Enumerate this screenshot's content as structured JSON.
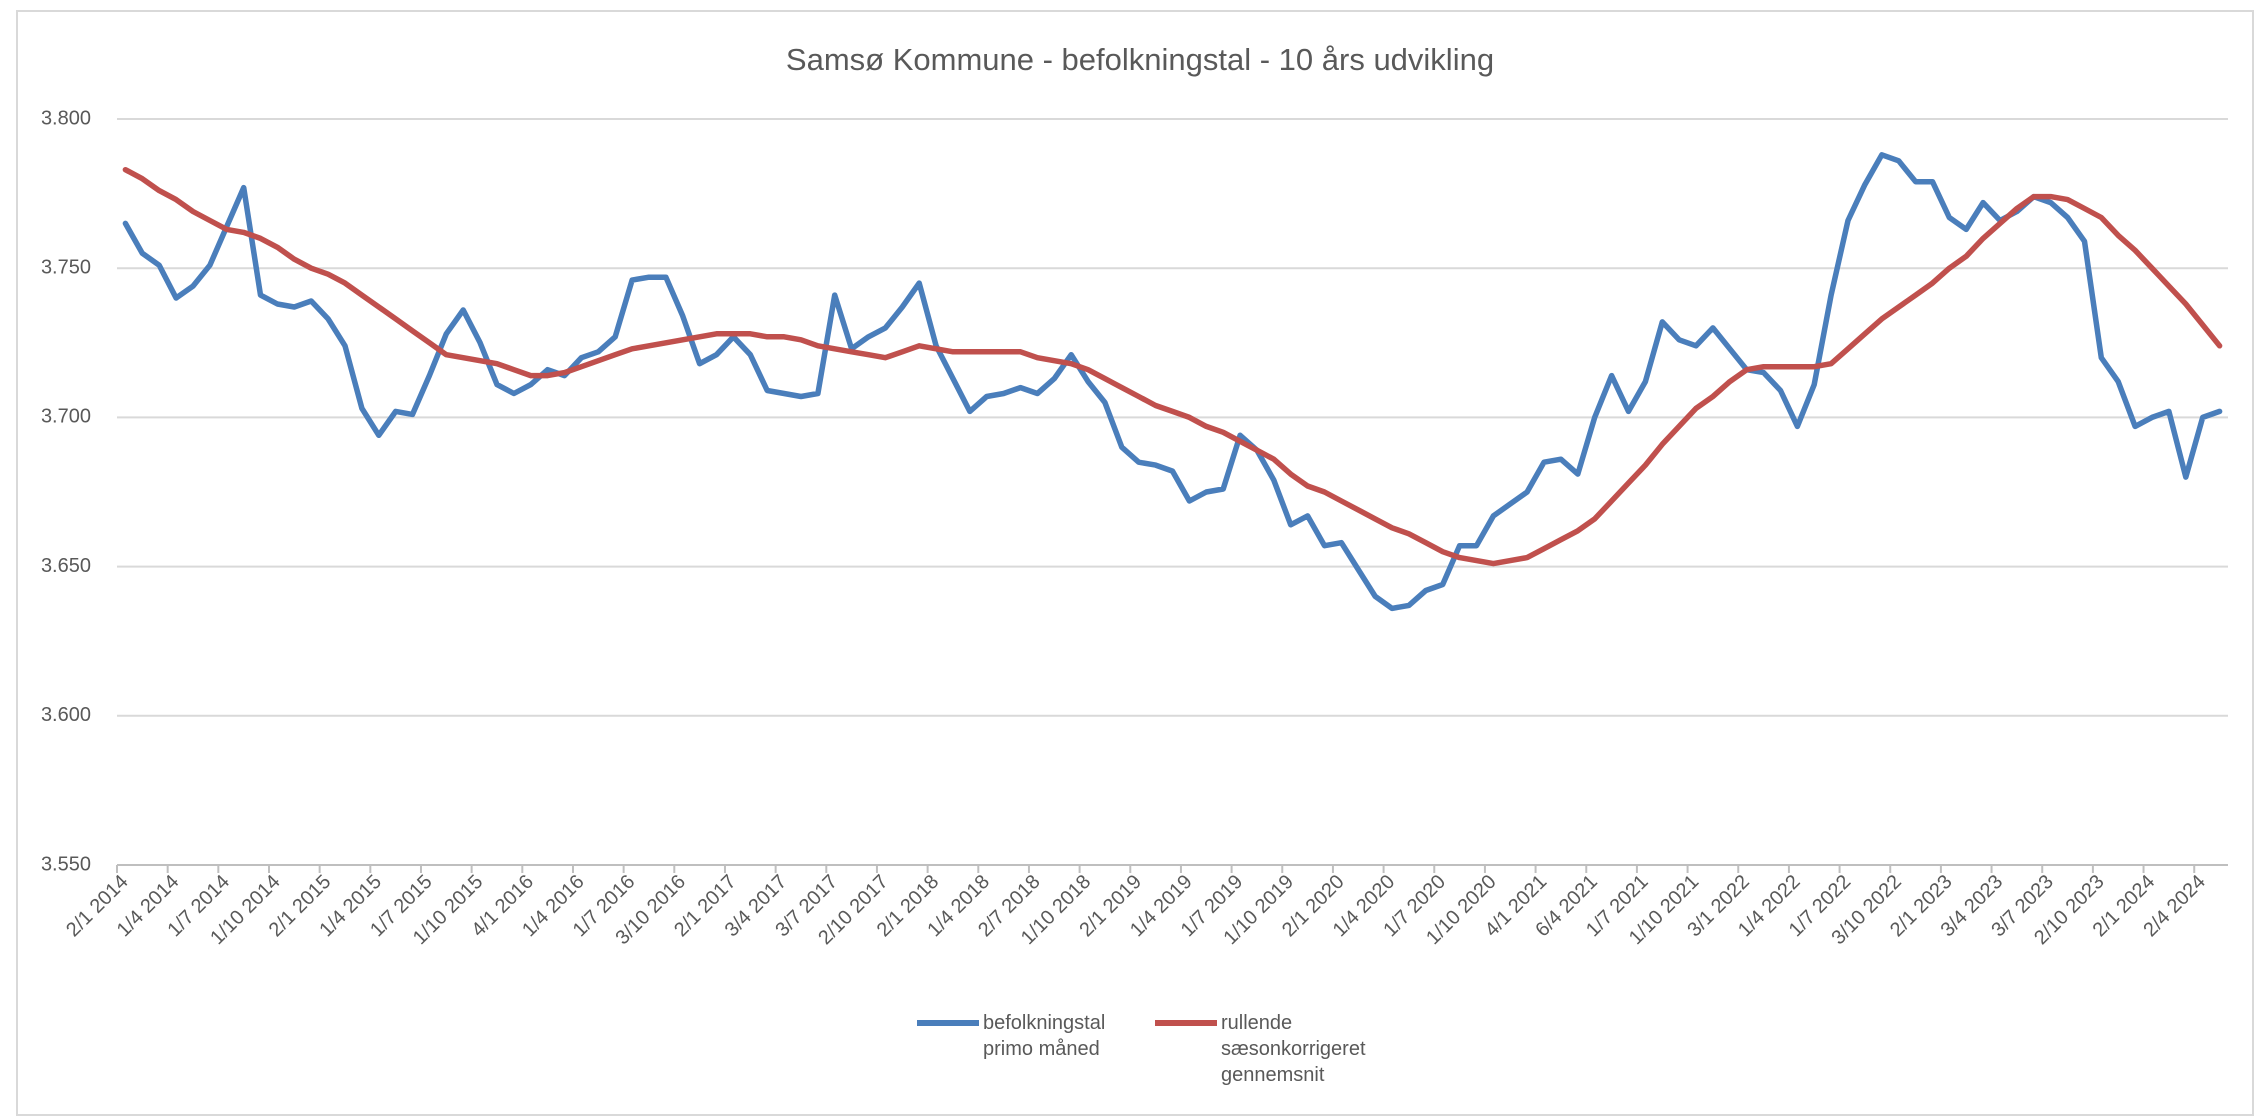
{
  "chart_data": {
    "type": "line",
    "title": "Samsø Kommune - befolkningstal - 10 års udvikling",
    "categories": [
      "2/1 2014",
      null,
      null,
      "1/4 2014",
      null,
      null,
      "1/7 2014",
      null,
      null,
      "1/10 2014",
      null,
      null,
      "2/1 2015",
      null,
      null,
      "1/4 2015",
      null,
      null,
      "1/7 2015",
      null,
      null,
      "1/10 2015",
      null,
      null,
      "4/1 2016",
      null,
      null,
      "1/4 2016",
      null,
      null,
      "1/7 2016",
      null,
      null,
      "3/10 2016",
      null,
      null,
      "2/1 2017",
      null,
      null,
      "3/4 2017",
      null,
      null,
      "3/7 2017",
      null,
      null,
      "2/10 2017",
      null,
      null,
      "2/1 2018",
      null,
      null,
      "1/4 2018",
      null,
      null,
      "2/7 2018",
      null,
      null,
      "1/10 2018",
      null,
      null,
      "2/1 2019",
      null,
      null,
      "1/4 2019",
      null,
      null,
      "1/7 2019",
      null,
      null,
      "1/10 2019",
      null,
      null,
      "2/1 2020",
      null,
      null,
      "1/4 2020",
      null,
      null,
      "1/7 2020",
      null,
      null,
      "1/10 2020",
      null,
      null,
      "4/1 2021",
      null,
      null,
      "6/4 2021",
      null,
      null,
      "1/7 2021",
      null,
      null,
      "1/10 2021",
      null,
      null,
      "3/1 2022",
      null,
      null,
      "1/4 2022",
      null,
      null,
      "1/7 2022",
      null,
      null,
      "3/10 2022",
      null,
      null,
      "2/1 2023",
      null,
      null,
      "3/4 2023",
      null,
      null,
      "3/7 2023",
      null,
      null,
      "2/10 2023",
      null,
      null,
      "2/1 2024",
      null,
      null,
      "2/4 2024",
      null
    ],
    "series": [
      {
        "name": "befolkningstal primo måned",
        "color": "#4a7ebb",
        "values": [
          3765,
          3755,
          3751,
          3740,
          3744,
          3751,
          3764,
          3777,
          3741,
          3738,
          3737,
          3739,
          3733,
          3724,
          3703,
          3694,
          3702,
          3701,
          3714,
          3728,
          3736,
          3725,
          3711,
          3708,
          3711,
          3716,
          3714,
          3720,
          3722,
          3727,
          3746,
          3747,
          3747,
          3734,
          3718,
          3721,
          3727,
          3721,
          3709,
          3708,
          3707,
          3708,
          3741,
          3723,
          3727,
          3730,
          3737,
          3745,
          3724,
          3713,
          3702,
          3707,
          3708,
          3710,
          3708,
          3713,
          3721,
          3712,
          3705,
          3690,
          3685,
          3684,
          3682,
          3672,
          3675,
          3676,
          3694,
          3689,
          3679,
          3664,
          3667,
          3657,
          3658,
          3649,
          3640,
          3636,
          3637,
          3642,
          3644,
          3657,
          3657,
          3667,
          3671,
          3675,
          3685,
          3686,
          3681,
          3700,
          3714,
          3702,
          3712,
          3732,
          3726,
          3724,
          3730,
          3723,
          3716,
          3715,
          3709,
          3697,
          3711,
          3741,
          3766,
          3778,
          3788,
          3786,
          3779,
          3779,
          3767,
          3763,
          3772,
          3766,
          3769,
          3774,
          3772,
          3767,
          3759,
          3720,
          3712,
          3697,
          3700,
          3702,
          3680,
          3700,
          3702
        ]
      },
      {
        "name": "rullende sæsonkorrigeret gennemsnit",
        "color": "#c0504d",
        "values": [
          3783,
          3780,
          3776,
          3773,
          3769,
          3766,
          3763,
          3762,
          3760,
          3757,
          3753,
          3750,
          3748,
          3745,
          3741,
          3737,
          3733,
          3729,
          3725,
          3721,
          3720,
          3719,
          3718,
          3716,
          3714,
          3714,
          3715,
          3717,
          3719,
          3721,
          3723,
          3724,
          3725,
          3726,
          3727,
          3728,
          3728,
          3728,
          3727,
          3727,
          3726,
          3724,
          3723,
          3722,
          3721,
          3720,
          3722,
          3724,
          3723,
          3722,
          3722,
          3722,
          3722,
          3722,
          3720,
          3719,
          3718,
          3716,
          3713,
          3710,
          3707,
          3704,
          3702,
          3700,
          3697,
          3695,
          3692,
          3689,
          3686,
          3681,
          3677,
          3675,
          3672,
          3669,
          3666,
          3663,
          3661,
          3658,
          3655,
          3653,
          3652,
          3651,
          3652,
          3653,
          3656,
          3659,
          3662,
          3666,
          3672,
          3678,
          3684,
          3691,
          3697,
          3703,
          3707,
          3712,
          3716,
          3717,
          3717,
          3717,
          3717,
          3718,
          3723,
          3728,
          3733,
          3737,
          3741,
          3745,
          3750,
          3754,
          3760,
          3765,
          3770,
          3774,
          3774,
          3773,
          3770,
          3767,
          3761,
          3756,
          3750,
          3744,
          3738,
          3731,
          3724
        ]
      }
    ],
    "ylim": [
      3550,
      3800
    ],
    "yticks": [
      {
        "value": 3550,
        "label": "3.550"
      },
      {
        "value": 3600,
        "label": "3.600"
      },
      {
        "value": 3650,
        "label": "3.650"
      },
      {
        "value": 3700,
        "label": "3.700"
      },
      {
        "value": 3750,
        "label": "3.750"
      },
      {
        "value": 3800,
        "label": "3.800"
      }
    ],
    "grid": true,
    "legend": "bottom"
  }
}
